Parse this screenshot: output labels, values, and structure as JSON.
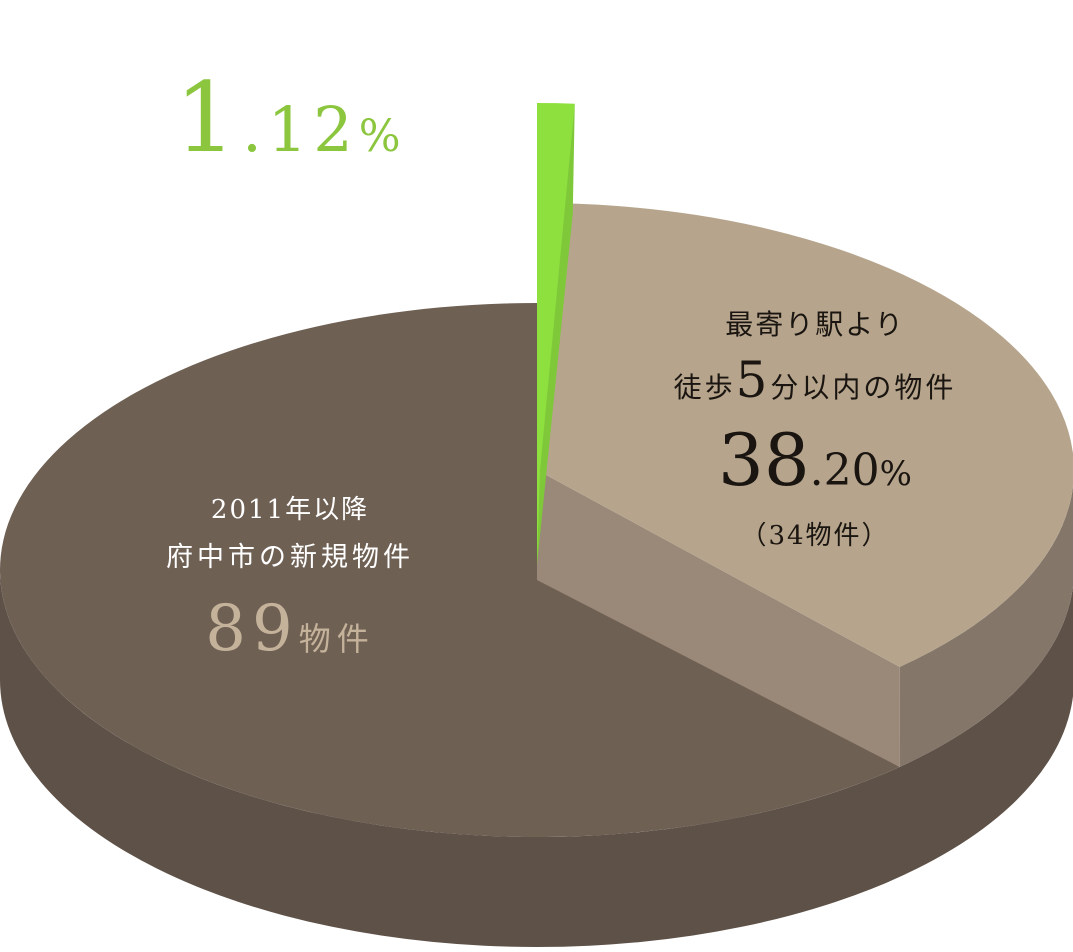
{
  "chart_data": {
    "type": "pie",
    "style": "3d-exploded",
    "slices": [
      {
        "label": "2011年以降 府中市の新規物件",
        "value": 89,
        "unit": "物件",
        "color": "#6f6054"
      },
      {
        "label": "最寄り駅より 徒歩5分以内の物件",
        "percent": 38.2,
        "count": 34,
        "color": "#b6a58c"
      },
      {
        "percent": 1.12,
        "color": "#8ee03f"
      }
    ]
  },
  "labels": {
    "green": {
      "int": "1",
      "dec": ".12",
      "unit": "%"
    },
    "tan": {
      "line1": "最寄り駅より",
      "line2_a": "徒歩",
      "line2_num": "5",
      "line2_b": "分以内の物件",
      "int": "38",
      "dec": ".20",
      "unit": "%",
      "count": "（34物件）"
    },
    "brown": {
      "line1": "2011年以降",
      "line2": "府中市の新規物件",
      "num": "89",
      "unit": "物件"
    }
  }
}
